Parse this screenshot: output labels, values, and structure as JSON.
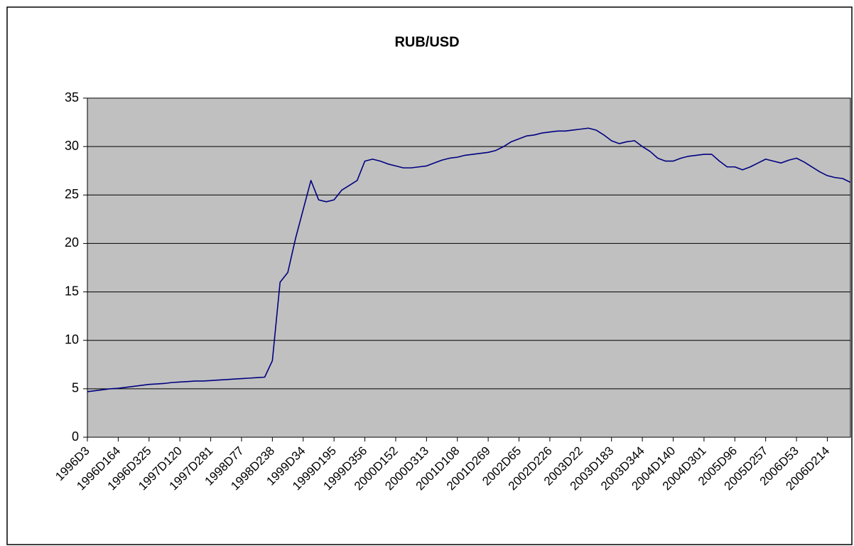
{
  "chart_data": {
    "type": "line",
    "title": "RUB/USD",
    "categories": [
      "1996D3",
      null,
      null,
      null,
      "1996D164",
      null,
      null,
      null,
      "1996D325",
      null,
      null,
      null,
      "1997D120",
      null,
      null,
      null,
      "1997D281",
      null,
      null,
      null,
      "1998D77",
      null,
      null,
      null,
      "1998D238",
      null,
      null,
      null,
      "1999D34",
      null,
      null,
      null,
      "1999D195",
      null,
      null,
      null,
      "1999D356",
      null,
      null,
      null,
      "2000D152",
      null,
      null,
      null,
      "2000D313",
      null,
      null,
      null,
      "2001D108",
      null,
      null,
      null,
      "2001D269",
      null,
      null,
      null,
      "2002D65",
      null,
      null,
      null,
      "2002D226",
      null,
      null,
      null,
      "2003D22",
      null,
      null,
      null,
      "2003D183",
      null,
      null,
      null,
      "2003D344",
      null,
      null,
      null,
      "2004D140",
      null,
      null,
      null,
      "2004D301",
      null,
      null,
      null,
      "2005D96",
      null,
      null,
      null,
      "2005D257",
      null,
      null,
      null,
      "2006D53",
      null,
      null,
      null,
      "2006D214",
      null,
      null,
      null
    ],
    "values": [
      4.7,
      4.8,
      4.9,
      5.0,
      5.05,
      5.15,
      5.25,
      5.35,
      5.45,
      5.5,
      5.55,
      5.65,
      5.7,
      5.75,
      5.8,
      5.8,
      5.85,
      5.9,
      5.95,
      6.0,
      6.05,
      6.1,
      6.15,
      6.2,
      7.9,
      16.0,
      17.0,
      20.5,
      23.5,
      26.5,
      24.5,
      24.3,
      24.5,
      25.5,
      26.0,
      26.5,
      28.5,
      28.7,
      28.5,
      28.2,
      28.0,
      27.8,
      27.8,
      27.9,
      28.0,
      28.3,
      28.6,
      28.8,
      28.9,
      29.1,
      29.2,
      29.3,
      29.4,
      29.6,
      30.0,
      30.5,
      30.8,
      31.1,
      31.2,
      31.4,
      31.5,
      31.6,
      31.6,
      31.7,
      31.8,
      31.9,
      31.7,
      31.2,
      30.6,
      30.3,
      30.5,
      30.6,
      30.0,
      29.5,
      28.8,
      28.5,
      28.5,
      28.8,
      29.0,
      29.1,
      29.2,
      29.2,
      28.5,
      27.9,
      27.9,
      27.6,
      27.9,
      28.3,
      28.7,
      28.5,
      28.3,
      28.6,
      28.8,
      28.4,
      27.9,
      27.4,
      27.0,
      26.8,
      26.7,
      26.3
    ],
    "color": "#000080",
    "ylim": [
      0,
      35
    ],
    "yticks": [
      0,
      5,
      10,
      15,
      20,
      25,
      30,
      35
    ],
    "grid": true,
    "plot_background": "#c0c0c0"
  }
}
